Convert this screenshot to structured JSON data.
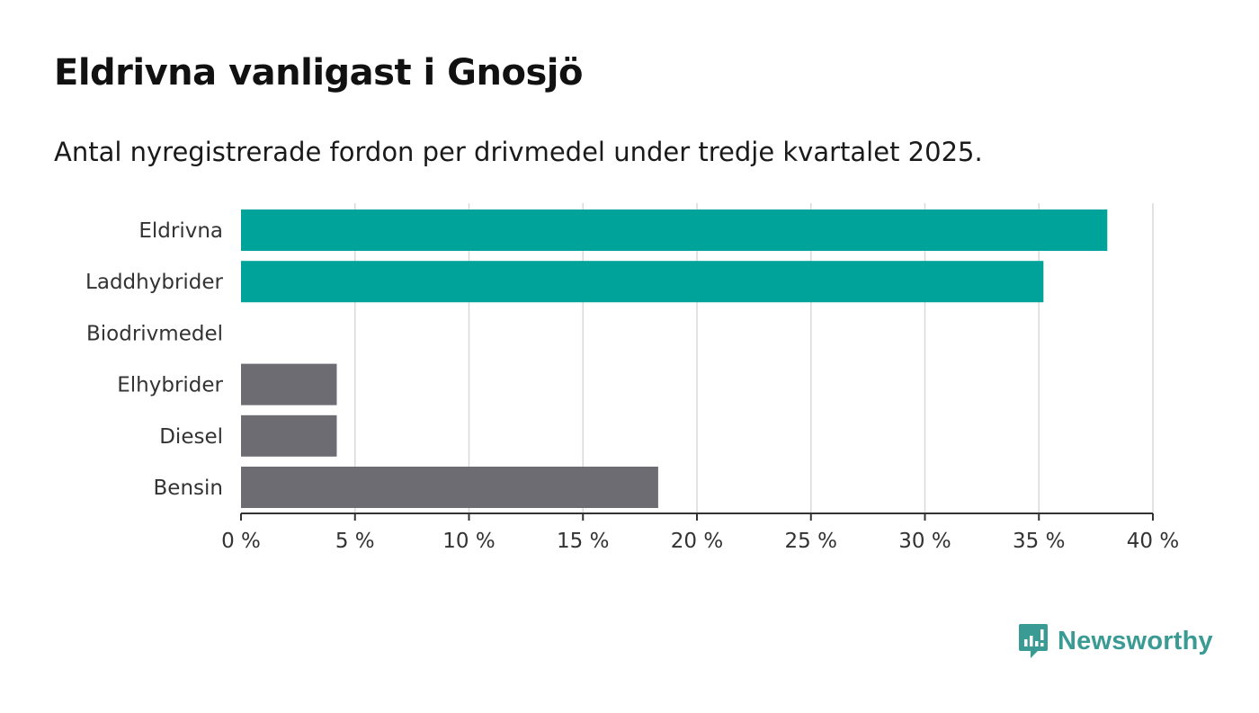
{
  "title": "Eldrivna vanligast i Gnosjö",
  "subtitle": "Antal nyregistrerade fordon per drivmedel under tredje kvartalet 2025.",
  "brand": {
    "name": "Newsworthy",
    "color": "#3a9a94"
  },
  "chart_data": {
    "type": "bar",
    "orientation": "horizontal",
    "categories": [
      "Eldrivna",
      "Laddhybrider",
      "Biodrivmedel",
      "Elhybrider",
      "Diesel",
      "Bensin"
    ],
    "values": [
      38.0,
      35.2,
      0,
      4.2,
      4.2,
      18.3
    ],
    "colors": [
      "#00a39a",
      "#00a39a",
      "#00a39a",
      "#6c6c72",
      "#6c6c72",
      "#6c6c72"
    ],
    "xlim": [
      0,
      40
    ],
    "xticks": [
      0,
      5,
      10,
      15,
      20,
      25,
      30,
      35,
      40
    ],
    "tick_labels": [
      "0 %",
      "5 %",
      "10 %",
      "15 %",
      "20 %",
      "25 %",
      "30 %",
      "35 %",
      "40 %"
    ],
    "grid": true
  }
}
